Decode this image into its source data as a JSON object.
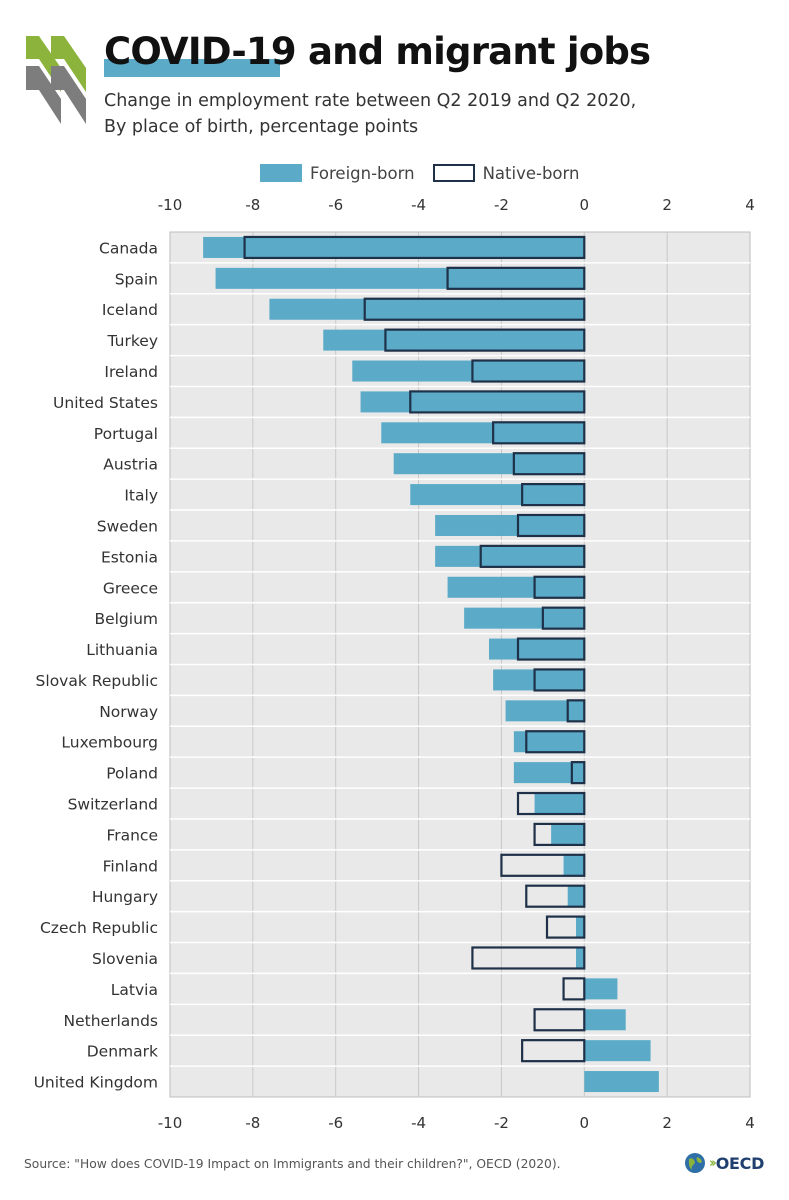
{
  "header": {
    "title": "COVID-19 and migrant jobs",
    "subtitle_line1": "Change in employment rate between Q2 2019 and Q2 2020,",
    "subtitle_line2": "By place of birth, percentage points"
  },
  "legend": {
    "foreign_label": "Foreign-born",
    "native_label": "Native-born"
  },
  "colors": {
    "foreign": "#5aaac8",
    "native_outline": "#1f3148",
    "plot_background": "#e9e9e9",
    "grid": "#c8c8c8",
    "logo_green": "#8cb43c",
    "logo_grey": "#7d7d7d"
  },
  "chart_data": {
    "type": "bar",
    "orientation": "horizontal",
    "xlim": [
      -10,
      4
    ],
    "ticks": [
      -10,
      -8,
      -6,
      -4,
      -2,
      0,
      2,
      4
    ],
    "grid": true,
    "legend_position": "top",
    "categories": [
      "Canada",
      "Spain",
      "Iceland",
      "Turkey",
      "Ireland",
      "United States",
      "Portugal",
      "Austria",
      "Italy",
      "Sweden",
      "Estonia",
      "Greece",
      "Belgium",
      "Lithuania",
      "Slovak Republic",
      "Norway",
      "Luxembourg",
      "Poland",
      "Switzerland",
      "France",
      "Finland",
      "Hungary",
      "Czech Republic",
      "Slovenia",
      "Latvia",
      "Netherlands",
      "Denmark",
      "United Kingdom"
    ],
    "series": [
      {
        "name": "Foreign-born",
        "style": "filled",
        "values": [
          -9.2,
          -8.9,
          -7.6,
          -6.3,
          -5.6,
          -5.4,
          -4.9,
          -4.6,
          -4.2,
          -3.6,
          -3.6,
          -3.3,
          -2.9,
          -2.3,
          -2.2,
          -1.9,
          -1.7,
          -1.7,
          -1.2,
          -0.8,
          -0.5,
          -0.4,
          -0.2,
          -0.2,
          0.8,
          1.0,
          1.6,
          1.8
        ]
      },
      {
        "name": "Native-born",
        "style": "outline",
        "values": [
          -8.2,
          -3.3,
          -5.3,
          -4.8,
          -2.7,
          -4.2,
          -2.2,
          -1.7,
          -1.5,
          -1.6,
          -2.5,
          -1.2,
          -1.0,
          -1.6,
          -1.2,
          -0.4,
          -1.4,
          -0.3,
          -1.6,
          -1.2,
          -2.0,
          -1.4,
          -0.9,
          -2.7,
          -0.5,
          -1.2,
          -1.5,
          0.0
        ]
      }
    ]
  },
  "footer": {
    "source": "Source: \"How does COVID-19 Impact on Immigrants and their children?\", OECD (2020).",
    "logo_text": "OECD"
  }
}
